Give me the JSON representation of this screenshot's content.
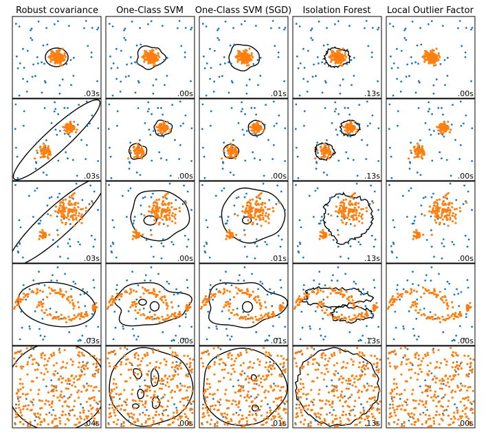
{
  "chart_data": {
    "type": "scatter",
    "layout_grid": {
      "rows": 5,
      "cols": 5
    },
    "axes": {
      "xlim": [
        -7,
        7
      ],
      "ylim": [
        -7,
        7
      ],
      "ticks": "none",
      "grid": false
    },
    "colors": {
      "inlier": "#ff7f0e",
      "outlier": "#1f77b4",
      "boundary": "#000000"
    },
    "columns": [
      {
        "title": "Robust covariance"
      },
      {
        "title": "One-Class SVM"
      },
      {
        "title": "One-Class SVM (SGD)"
      },
      {
        "title": "Isolation Forest"
      },
      {
        "title": "Local Outlier Factor"
      }
    ],
    "rows": [
      {
        "dataset": "single-blob",
        "clusters": [
          {
            "center": [
              0,
              0
            ],
            "spread": 0.55,
            "count": 140
          }
        ],
        "outlier_count": 50,
        "timings": [
          ".03s",
          ".00s",
          ".01s",
          ".13s",
          ".00s"
        ]
      },
      {
        "dataset": "two-blobs",
        "clusters": [
          {
            "center": [
              2,
              2
            ],
            "spread": 0.45,
            "count": 70
          },
          {
            "center": [
              -2,
              -2
            ],
            "spread": 0.45,
            "count": 70
          }
        ],
        "outlier_count": 50,
        "timings": [
          ".03s",
          ".00s",
          ".00s",
          ".13s",
          ".00s"
        ]
      },
      {
        "dataset": "two-blobs-unbalanced",
        "clusters": [
          {
            "center": [
              2,
              2
            ],
            "spread": 1.2,
            "count": 110
          },
          {
            "center": [
              -2,
              -2
            ],
            "spread": 0.35,
            "count": 30
          }
        ],
        "outlier_count": 50,
        "timings": [
          ".03s",
          ".00s",
          ".01s",
          ".13s",
          ".00s"
        ]
      },
      {
        "dataset": "two-moons",
        "clusters": [
          {
            "shape": "moons",
            "count": 140
          }
        ],
        "outlier_count": 50,
        "timings": [
          ".03s",
          ".00s",
          ".01s",
          ".13s",
          ".00s"
        ]
      },
      {
        "dataset": "uniform-noise",
        "clusters": [
          {
            "shape": "uniform",
            "count": 300
          }
        ],
        "outlier_count": 40,
        "timings": [
          ".04s",
          ".00s",
          ".01s",
          ".13s",
          ".00s"
        ]
      }
    ]
  }
}
